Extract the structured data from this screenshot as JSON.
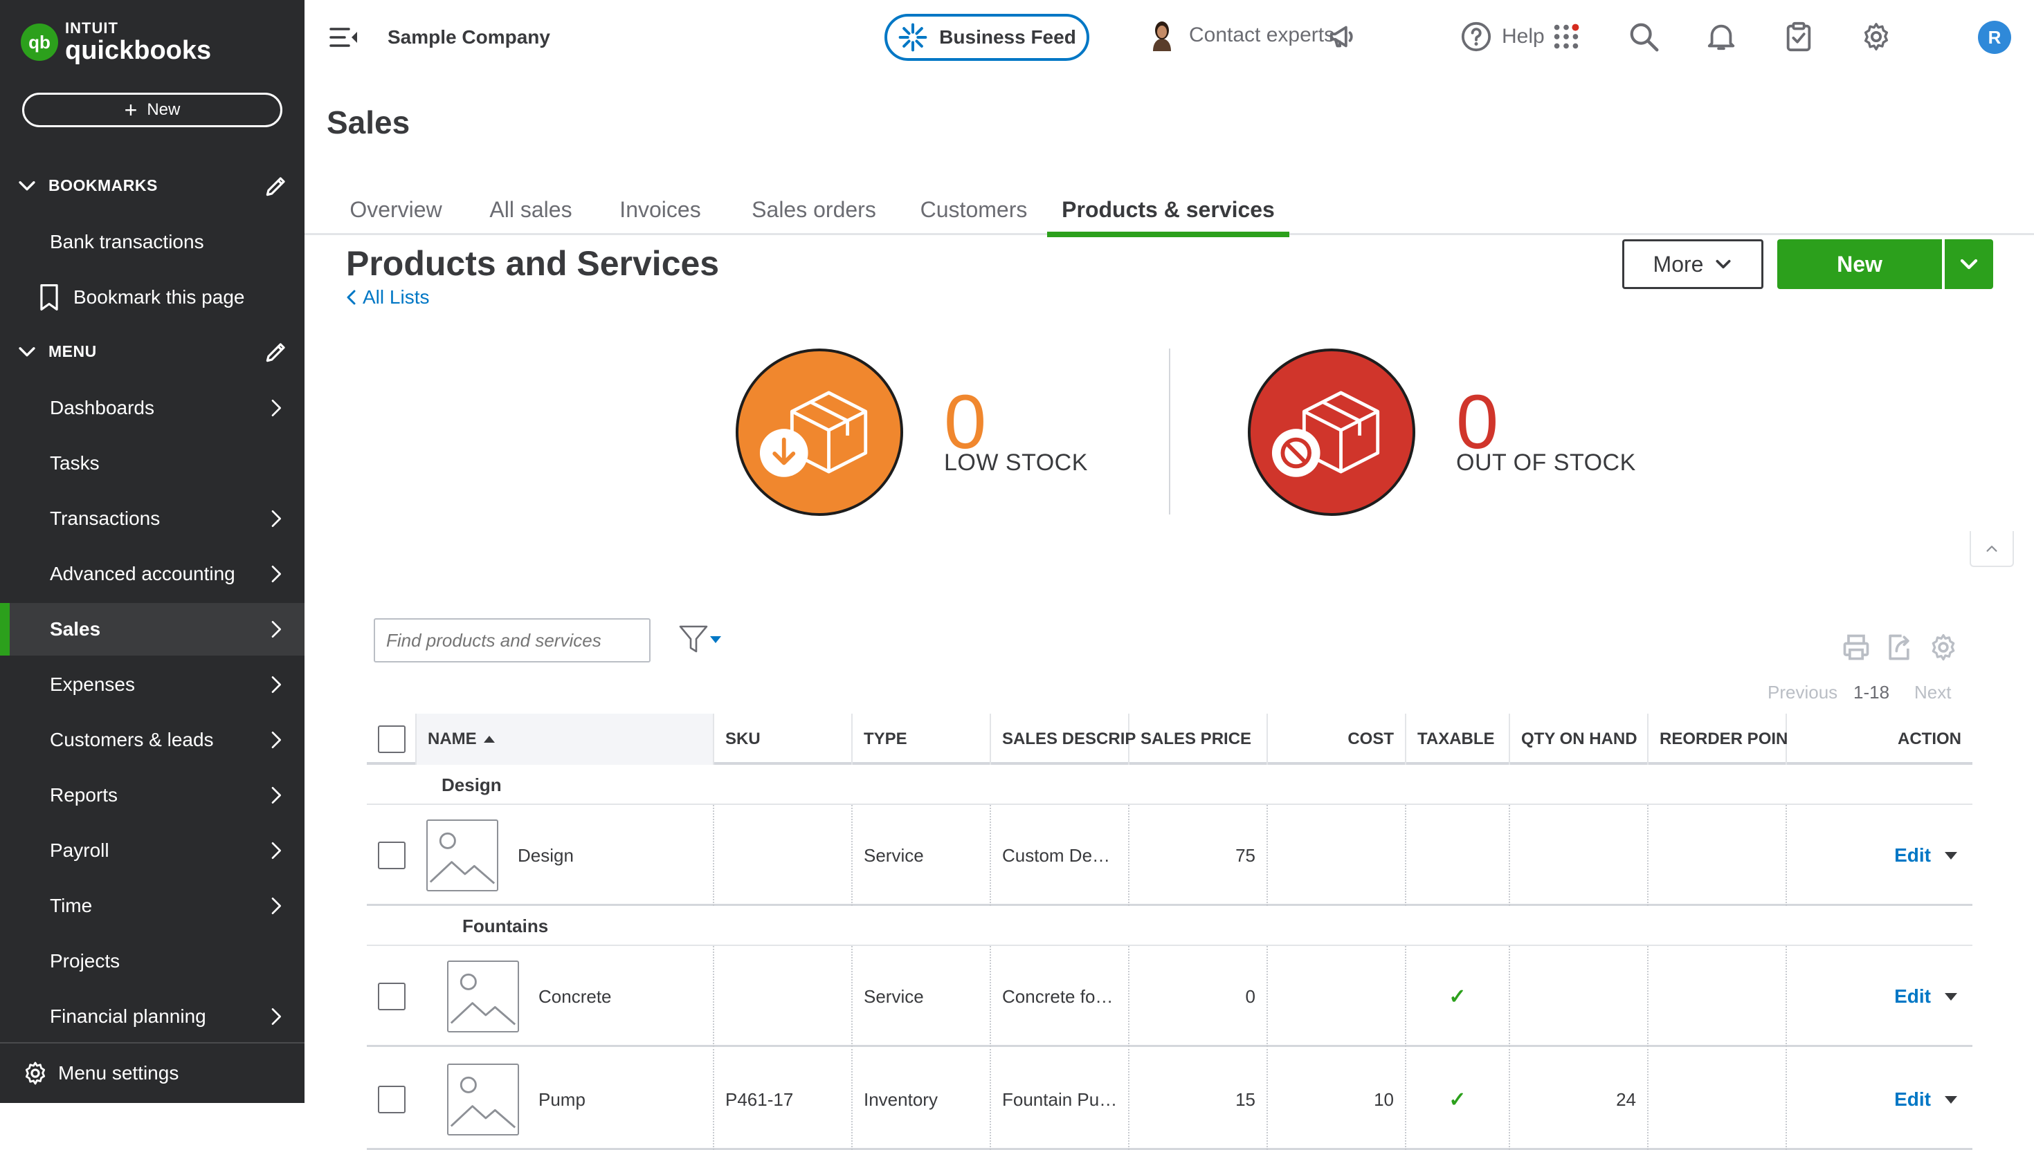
{
  "brand": {
    "intuit": "INTUIT",
    "product": "quickbooks",
    "mark": "qb"
  },
  "sidebar": {
    "new_label": "New",
    "bookmarks_header": "BOOKMARKS",
    "bookmarks": [
      {
        "label": "Bank transactions"
      },
      {
        "label": "Bookmark this page"
      }
    ],
    "menu_header": "MENU",
    "menu_items": [
      {
        "label": "Dashboards",
        "has_arrow": true
      },
      {
        "label": "Tasks",
        "has_arrow": false
      },
      {
        "label": "Transactions",
        "has_arrow": true
      },
      {
        "label": "Advanced accounting",
        "has_arrow": true
      },
      {
        "label": "Sales",
        "has_arrow": true,
        "active": true
      },
      {
        "label": "Expenses",
        "has_arrow": true
      },
      {
        "label": "Customers & leads",
        "has_arrow": true
      },
      {
        "label": "Reports",
        "has_arrow": true
      },
      {
        "label": "Payroll",
        "has_arrow": true
      },
      {
        "label": "Time",
        "has_arrow": true
      },
      {
        "label": "Projects",
        "has_arrow": false
      },
      {
        "label": "Financial planning",
        "has_arrow": true
      }
    ],
    "menu_settings": "Menu settings"
  },
  "topbar": {
    "company": "Sample Company",
    "business_feed": "Business Feed",
    "contact_experts": "Contact experts",
    "help": "Help",
    "avatar_initial": "R",
    "icons": [
      "megaphone-icon",
      "help-icon",
      "apps-grid-icon",
      "search-icon",
      "bell-icon",
      "clipboard-icon",
      "gear-icon"
    ]
  },
  "page": {
    "title": "Sales",
    "tabs": [
      "Overview",
      "All sales",
      "Invoices",
      "Sales orders",
      "Customers",
      "Products & services"
    ],
    "active_tab": "Products & services"
  },
  "products": {
    "title": "Products and Services",
    "all_lists": "All Lists",
    "more": "More",
    "new": "New",
    "low_stock": {
      "count": "0",
      "label": "LOW STOCK",
      "color": "#f0872e"
    },
    "out_of_stock": {
      "count": "0",
      "label": "OUT OF STOCK",
      "color": "#d0352b"
    },
    "search_placeholder": "Find products and services",
    "pager": {
      "previous": "Previous",
      "range": "1-18",
      "next": "Next"
    },
    "columns": [
      "NAME",
      "SKU",
      "TYPE",
      "SALES DESCRIP",
      "SALES PRICE",
      "COST",
      "TAXABLE",
      "QTY ON HAND",
      "REORDER POIN",
      "ACTION"
    ],
    "groups": [
      {
        "label": "Design"
      },
      {
        "label": "Fountains"
      }
    ],
    "rows": [
      {
        "name": "Design",
        "sku": "",
        "type": "Service",
        "desc": "Custom De…",
        "price": "75",
        "cost": "",
        "taxable": false,
        "qty": "",
        "reorder": "",
        "action": "Edit"
      },
      {
        "name": "Concrete",
        "sku": "",
        "type": "Service",
        "desc": "Concrete fo…",
        "price": "0",
        "cost": "",
        "taxable": true,
        "qty": "",
        "reorder": "",
        "action": "Edit"
      },
      {
        "name": "Pump",
        "sku": "P461-17",
        "type": "Inventory",
        "desc": "Fountain Pu…",
        "price": "15",
        "cost": "10",
        "taxable": true,
        "qty": "24",
        "reorder": "",
        "action": "Edit"
      }
    ],
    "check_glyph": "✓"
  },
  "colors": {
    "brand_green": "#2ca01c",
    "link_blue": "#0077c5",
    "sidebar_bg": "#2a2b2d"
  }
}
